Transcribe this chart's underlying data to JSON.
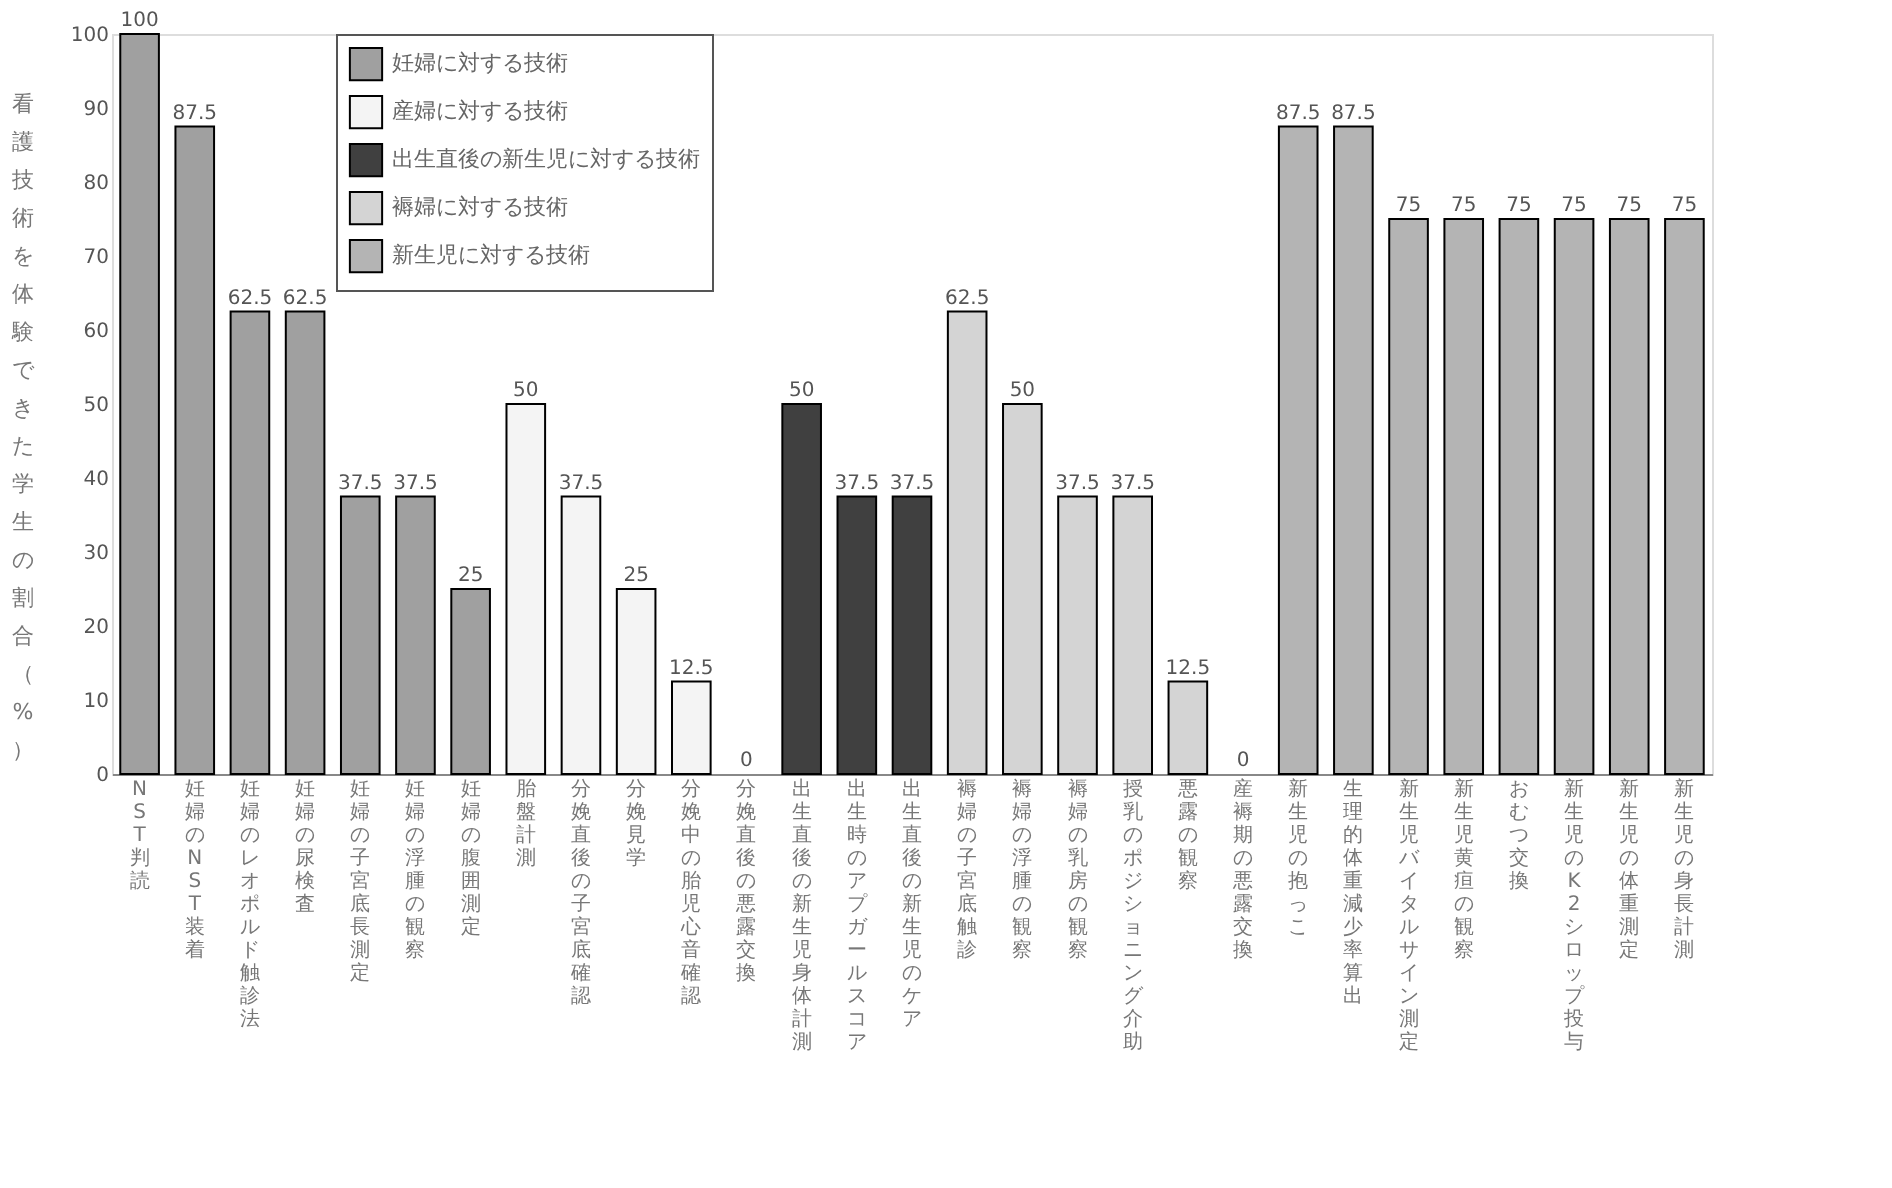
{
  "chart_data": {
    "type": "bar",
    "ylabel": "看護技術を体験できた学生の割合（%）",
    "categories": [
      "NST判読",
      "妊婦のNST装着",
      "妊婦のレオポルド触診法",
      "妊婦の尿検査",
      "妊婦の子宮底長測定",
      "妊婦の浮腫の観察",
      "妊婦の腹囲測定",
      "胎盤計測",
      "分娩直後の子宮底確認",
      "分娩見学",
      "分娩中の胎児心音確認",
      "分娩直後の悪露交換",
      "出生直後の新生児身体計測",
      "出生時のアプガールスコア",
      "出生直後の新生児のケア",
      "褥婦の子宮底触診",
      "褥婦の浮腫の観察",
      "褥婦の乳房の観察",
      "授乳のポジショニング介助",
      "悪露の観察",
      "産褥期の悪露交換",
      "新生児の抱っこ",
      "生理的体重減少率算出",
      "新生児バイタルサイン測定",
      "新生児黄疸の観察",
      "おむつ交換",
      "新生児のK2シロップ投与",
      "新生児の体重測定",
      "新生児の身長計測"
    ],
    "series": [
      {
        "name": "妊婦に対する技術",
        "color": "#a0a0a0",
        "values": [
          100,
          87.5,
          62.5,
          62.5,
          37.5,
          37.5,
          25,
          null,
          null,
          null,
          null,
          null,
          null,
          null,
          null,
          null,
          null,
          null,
          null,
          null,
          null,
          null,
          null,
          null,
          null,
          null,
          null,
          null,
          null
        ]
      },
      {
        "name": "産婦に対する技術",
        "color": "#f4f4f4",
        "values": [
          null,
          null,
          null,
          null,
          null,
          null,
          null,
          50,
          37.5,
          25,
          12.5,
          0,
          null,
          null,
          null,
          null,
          null,
          null,
          null,
          null,
          null,
          null,
          null,
          null,
          null,
          null,
          null,
          null,
          null
        ]
      },
      {
        "name": "出生直後の新生児に対する技術",
        "color": "#404040",
        "values": [
          null,
          null,
          null,
          null,
          null,
          null,
          null,
          null,
          null,
          null,
          null,
          null,
          50,
          37.5,
          37.5,
          null,
          null,
          null,
          null,
          null,
          null,
          null,
          null,
          null,
          null,
          null,
          null,
          null,
          null
        ]
      },
      {
        "name": "褥婦に対する技術",
        "color": "#d4d4d4",
        "values": [
          null,
          null,
          null,
          null,
          null,
          null,
          null,
          null,
          null,
          null,
          null,
          null,
          null,
          null,
          null,
          62.5,
          50,
          37.5,
          37.5,
          12.5,
          0,
          null,
          null,
          null,
          null,
          null,
          null,
          null,
          null
        ]
      },
      {
        "name": "新生児に対する技術",
        "color": "#b4b4b4",
        "values": [
          null,
          null,
          null,
          null,
          null,
          null,
          null,
          null,
          null,
          null,
          null,
          null,
          null,
          null,
          null,
          null,
          null,
          null,
          null,
          null,
          null,
          87.5,
          87.5,
          75,
          75,
          75,
          75,
          75,
          75
        ]
      }
    ],
    "ylim": [
      0,
      100
    ],
    "yticks": [
      0,
      10,
      20,
      30,
      40,
      50,
      60,
      70,
      80,
      90,
      100
    ],
    "data_labels": true,
    "grid": false,
    "legend": "top"
  }
}
